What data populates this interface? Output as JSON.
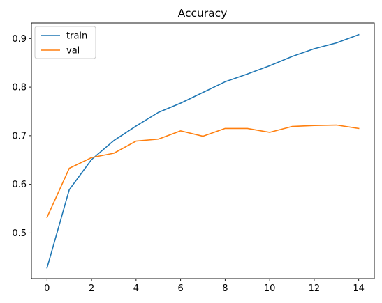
{
  "chart_data": {
    "type": "line",
    "title": "Accuracy",
    "xlabel": "",
    "ylabel": "",
    "xlim": [
      -0.7,
      14.7
    ],
    "ylim": [
      0.406,
      0.932
    ],
    "x_ticks": [
      0,
      2,
      4,
      6,
      8,
      10,
      12,
      14
    ],
    "x_tick_labels": [
      "0",
      "2",
      "4",
      "6",
      "8",
      "10",
      "12",
      "14"
    ],
    "y_ticks": [
      0.5,
      0.6,
      0.7,
      0.8,
      0.9
    ],
    "y_tick_labels": [
      "0.5",
      "0.6",
      "0.7",
      "0.8",
      "0.9"
    ],
    "grid": false,
    "legend_position": "upper left",
    "x": [
      0,
      1,
      2,
      3,
      4,
      5,
      6,
      7,
      8,
      9,
      10,
      11,
      12,
      13,
      14
    ],
    "series": [
      {
        "name": "train",
        "color": "#1f77b4",
        "values": [
          0.428,
          0.589,
          0.651,
          0.69,
          0.72,
          0.748,
          0.767,
          0.789,
          0.811,
          0.827,
          0.844,
          0.863,
          0.879,
          0.891,
          0.908
        ]
      },
      {
        "name": "val",
        "color": "#ff7f0e",
        "values": [
          0.532,
          0.633,
          0.655,
          0.664,
          0.689,
          0.693,
          0.71,
          0.699,
          0.715,
          0.715,
          0.707,
          0.719,
          0.721,
          0.722,
          0.715
        ]
      }
    ]
  }
}
